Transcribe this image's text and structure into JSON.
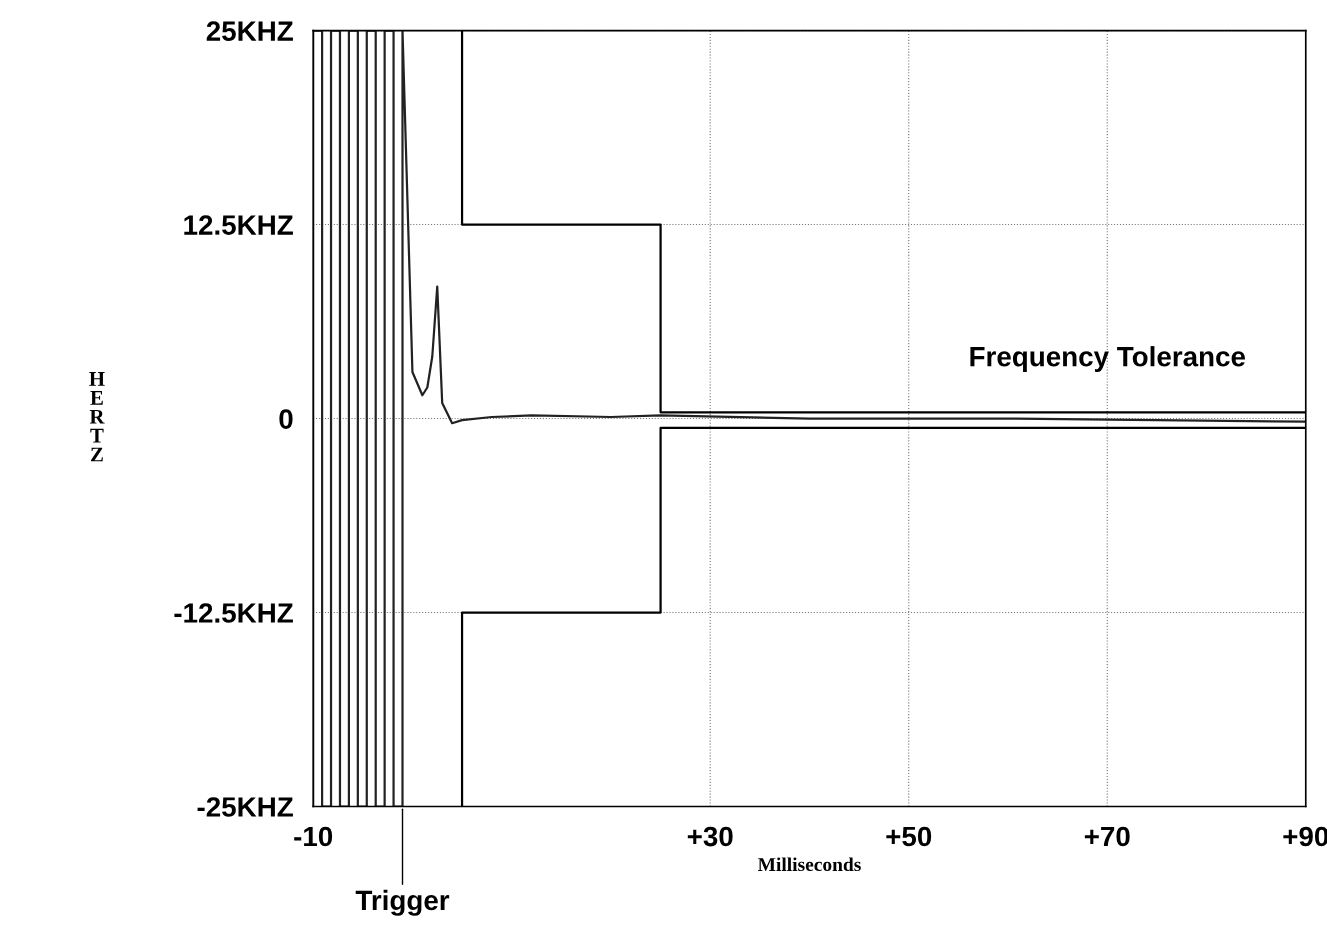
{
  "chart_data": {
    "type": "line",
    "xlabel": "Milliseconds",
    "ylabel": "HERTZ",
    "xlim": [
      -10,
      90
    ],
    "ylim": [
      -25,
      25
    ],
    "xticks": [
      {
        "value": -10,
        "label": "-10"
      },
      {
        "value": 30,
        "label": "+30"
      },
      {
        "value": 50,
        "label": "+50"
      },
      {
        "value": 70,
        "label": "+70"
      },
      {
        "value": 90,
        "label": "+90"
      }
    ],
    "yticks": [
      {
        "value": -25,
        "label": "-25KHZ"
      },
      {
        "value": -12.5,
        "label": "-12.5KHZ"
      },
      0,
      {
        "value": 12.5,
        "label": "12.5KHZ"
      },
      {
        "value": 25,
        "label": "25KHZ"
      }
    ],
    "grid": true,
    "line_style": "solid",
    "marker": "none",
    "series": [
      {
        "color": "#222222",
        "x": [
          -10,
          -10,
          -9.1,
          -9.1,
          -8.2,
          -8.2,
          -7.3,
          -7.3,
          -6.4,
          -6.4,
          -5.5,
          -5.5,
          -4.6,
          -4.6,
          -3.7,
          -3.7,
          -2.8,
          -2.8,
          -1.9,
          -1.9,
          -1,
          -1,
          0,
          1,
          1.5,
          2,
          2.5,
          3,
          4,
          5,
          8,
          12,
          20,
          25,
          40,
          60,
          90
        ],
        "values": [
          -25,
          25,
          25,
          -25,
          -25,
          25,
          25,
          -25,
          -25,
          25,
          25,
          -25,
          -25,
          25,
          25,
          -25,
          -25,
          25,
          25,
          -25,
          -25,
          25,
          3,
          1.5,
          2,
          4,
          8.5,
          1,
          -0.3,
          -0.1,
          0.1,
          0.2,
          0.1,
          0.2,
          0,
          0,
          -0.2
        ]
      },
      {
        "color": "#000000",
        "x": [
          5,
          5,
          25,
          25,
          90
        ],
        "values": [
          25,
          12.5,
          12.5,
          0.4,
          0.4
        ]
      },
      {
        "color": "#000000",
        "x": [
          5,
          5,
          25,
          25,
          90
        ],
        "values": [
          -25,
          -12.5,
          -12.5,
          -0.6,
          -0.6
        ]
      }
    ],
    "annotations": [
      "Frequency Tolerance",
      {
        "text": "Trigger",
        "x": -1,
        "y": -25
      }
    ]
  }
}
